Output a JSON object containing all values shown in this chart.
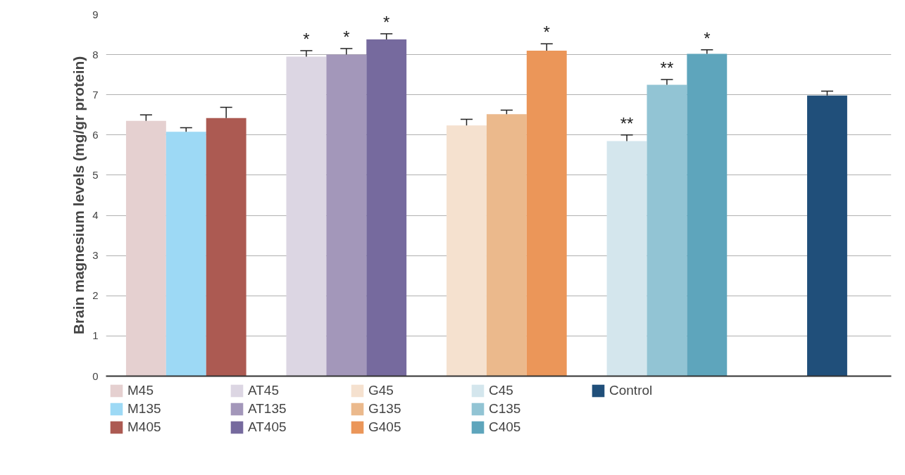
{
  "chart_data": {
    "type": "bar",
    "ylabel": "Brain magnesium levels (mg/gr protein)",
    "categories": [
      null,
      null,
      null,
      null,
      null
    ],
    "ylim": [
      0,
      9
    ],
    "yticks": [
      0,
      1,
      2,
      3,
      4,
      5,
      6,
      7,
      8,
      9
    ],
    "grid": "y",
    "legend": "bottom",
    "tick_labels": "y",
    "series": [
      {
        "name": "M45",
        "color": "#e5d0d0",
        "values": [
          6.35,
          null,
          null,
          null,
          null
        ],
        "errors": [
          [
            6.35,
            6.5
          ],
          null,
          null,
          null,
          null
        ],
        "value_labels": [
          null,
          null,
          null,
          null,
          null
        ]
      },
      {
        "name": "M135",
        "color": "#9dd9f5",
        "values": [
          6.08,
          null,
          null,
          null,
          null
        ],
        "errors": [
          [
            6.08,
            6.18
          ],
          null,
          null,
          null,
          null
        ],
        "value_labels": [
          null,
          null,
          null,
          null,
          null
        ]
      },
      {
        "name": "M405",
        "color": "#ac5a52",
        "values": [
          6.42,
          null,
          null,
          null,
          null
        ],
        "errors": [
          [
            6.42,
            6.69
          ],
          null,
          null,
          null,
          null
        ],
        "value_labels": [
          null,
          null,
          null,
          null,
          null
        ]
      },
      {
        "name": "AT45",
        "color": "#dcd6e3",
        "values": [
          null,
          7.95,
          null,
          null,
          null
        ],
        "errors": [
          null,
          [
            7.95,
            8.1
          ],
          null,
          null,
          null
        ],
        "value_labels": [
          null,
          "*",
          null,
          null,
          null
        ]
      },
      {
        "name": "AT135",
        "color": "#a397ba",
        "values": [
          null,
          8.0,
          null,
          null,
          null
        ],
        "errors": [
          null,
          [
            8.0,
            8.15
          ],
          null,
          null,
          null
        ],
        "value_labels": [
          null,
          "*",
          null,
          null,
          null
        ]
      },
      {
        "name": "AT405",
        "color": "#766a9e",
        "values": [
          null,
          8.38,
          null,
          null,
          null
        ],
        "errors": [
          null,
          [
            8.38,
            8.52
          ],
          null,
          null,
          null
        ],
        "value_labels": [
          null,
          "*",
          null,
          null,
          null
        ]
      },
      {
        "name": "G45",
        "color": "#f5e1cf",
        "values": [
          null,
          null,
          6.24,
          null,
          null
        ],
        "errors": [
          null,
          null,
          [
            6.24,
            6.39
          ],
          null,
          null
        ],
        "value_labels": [
          null,
          null,
          null,
          null,
          null
        ]
      },
      {
        "name": "G135",
        "color": "#ebb98c",
        "values": [
          null,
          null,
          6.52,
          null,
          null
        ],
        "errors": [
          null,
          null,
          [
            6.52,
            6.62
          ],
          null,
          null
        ],
        "value_labels": [
          null,
          null,
          null,
          null,
          null
        ]
      },
      {
        "name": "G405",
        "color": "#eb9659",
        "values": [
          null,
          null,
          8.1,
          null,
          null
        ],
        "errors": [
          null,
          null,
          [
            8.1,
            8.27
          ],
          null,
          null
        ],
        "value_labels": [
          null,
          null,
          "*",
          null,
          null
        ]
      },
      {
        "name": "C45",
        "color": "#d4e6ed",
        "values": [
          null,
          null,
          null,
          5.85,
          null
        ],
        "errors": [
          null,
          null,
          null,
          [
            5.85,
            6.0
          ],
          null
        ],
        "value_labels": [
          null,
          null,
          null,
          "**",
          null
        ]
      },
      {
        "name": "C135",
        "color": "#92c4d4",
        "values": [
          null,
          null,
          null,
          7.25,
          null
        ],
        "errors": [
          null,
          null,
          null,
          [
            7.25,
            7.38
          ],
          null
        ],
        "value_labels": [
          null,
          null,
          null,
          "**",
          null
        ]
      },
      {
        "name": "C405",
        "color": "#5ea5bc",
        "values": [
          null,
          null,
          null,
          8.02,
          null
        ],
        "errors": [
          null,
          null,
          null,
          [
            8.02,
            8.12
          ],
          null
        ],
        "value_labels": [
          null,
          null,
          null,
          "*",
          null
        ]
      },
      {
        "name": "Control",
        "color": "#204f7a",
        "values": [
          null,
          null,
          null,
          null,
          6.98
        ],
        "errors": [
          null,
          null,
          null,
          null,
          [
            6.98,
            7.09
          ]
        ],
        "value_labels": [
          null,
          null,
          null,
          null,
          null
        ]
      }
    ]
  }
}
